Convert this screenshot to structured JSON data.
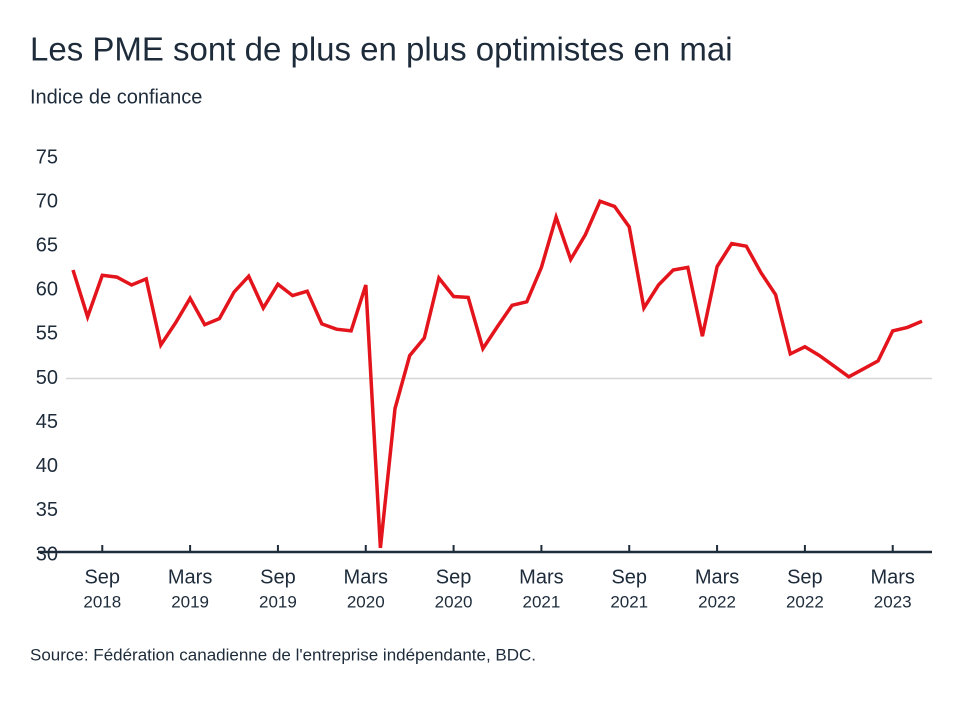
{
  "chart_data": {
    "type": "line",
    "title": "Les PME sont de plus en plus optimistes en mai",
    "subtitle": "Indice de confiance",
    "source": "Source: Fédération canadienne de l'entreprise indépendante, BDC.",
    "x": [
      "2018-07",
      "2018-08",
      "2018-09",
      "2018-10",
      "2018-11",
      "2018-12",
      "2019-01",
      "2019-02",
      "2019-03",
      "2019-04",
      "2019-05",
      "2019-06",
      "2019-07",
      "2019-08",
      "2019-09",
      "2019-10",
      "2019-11",
      "2019-12",
      "2020-01",
      "2020-02",
      "2020-03",
      "2020-04",
      "2020-05",
      "2020-06",
      "2020-07",
      "2020-08",
      "2020-09",
      "2020-10",
      "2020-11",
      "2020-12",
      "2021-01",
      "2021-02",
      "2021-03",
      "2021-04",
      "2021-05",
      "2021-06",
      "2021-07",
      "2021-08",
      "2021-09",
      "2021-10",
      "2021-11",
      "2021-12",
      "2022-01",
      "2022-02",
      "2022-03",
      "2022-04",
      "2022-05",
      "2022-06",
      "2022-07",
      "2022-08",
      "2022-09",
      "2022-10",
      "2022-11",
      "2022-12",
      "2023-01",
      "2023-02",
      "2023-03",
      "2023-04",
      "2023-05"
    ],
    "series": [
      {
        "name": "Indice de confiance",
        "color": "#e3141b",
        "values": [
          62.3,
          57,
          61.7,
          61.5,
          60.6,
          61.3,
          53.8,
          56.3,
          59.1,
          56.1,
          56.8,
          59.8,
          61.6,
          58,
          60.7,
          59.4,
          59.9,
          56.2,
          55.6,
          55.4,
          60.6,
          30.8,
          46.6,
          52.6,
          54.6,
          61.4,
          59.3,
          59.2,
          53.4,
          55.9,
          58.3,
          58.7,
          62.6,
          68.3,
          63.5,
          66.3,
          70.1,
          69.5,
          67.2,
          58,
          60.6,
          62.3,
          62.6,
          54.8,
          62.7,
          65.3,
          65,
          62,
          59.5,
          52.8,
          53.6,
          52.6,
          51.4,
          50.2,
          51.1,
          52,
          55.4,
          55.8,
          56.5
        ]
      }
    ],
    "xticks": [
      {
        "value": "2018-09",
        "label": "Sep",
        "year": "2018"
      },
      {
        "value": "2019-03",
        "label": "Mars",
        "year": "2019"
      },
      {
        "value": "2019-09",
        "label": "Sep",
        "year": "2019"
      },
      {
        "value": "2020-03",
        "label": "Mars",
        "year": "2020"
      },
      {
        "value": "2020-09",
        "label": "Sep",
        "year": "2020"
      },
      {
        "value": "2021-03",
        "label": "Mars",
        "year": "2021"
      },
      {
        "value": "2021-09",
        "label": "Sep",
        "year": "2021"
      },
      {
        "value": "2022-03",
        "label": "Mars",
        "year": "2022"
      },
      {
        "value": "2022-09",
        "label": "Sep",
        "year": "2022"
      },
      {
        "value": "2023-03",
        "label": "Mars",
        "year": "2023"
      }
    ],
    "ylim": [
      30,
      75
    ],
    "yticks": [
      30,
      35,
      40,
      45,
      50,
      55,
      60,
      65,
      70,
      75
    ],
    "reference_line": 50
  }
}
